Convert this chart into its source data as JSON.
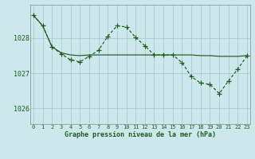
{
  "title": "Graphe pression niveau de la mer (hPa)",
  "bg_color": "#cce8ec",
  "grid_color": "#aaccd4",
  "line_color": "#1e5c1e",
  "x_ticks": [
    0,
    1,
    2,
    3,
    4,
    5,
    6,
    7,
    8,
    9,
    10,
    11,
    12,
    13,
    14,
    15,
    16,
    17,
    18,
    19,
    20,
    21,
    22,
    23
  ],
  "y_ticks": [
    1026,
    1027,
    1028
  ],
  "ylim": [
    1025.55,
    1028.95
  ],
  "xlim": [
    -0.3,
    23.3
  ],
  "series1_y": [
    1028.65,
    1028.35,
    1027.75,
    1027.58,
    1027.52,
    1027.5,
    1027.52,
    1027.52,
    1027.52,
    1027.52,
    1027.52,
    1027.52,
    1027.52,
    1027.52,
    1027.52,
    1027.52,
    1027.52,
    1027.52,
    1027.5,
    1027.5,
    1027.48,
    1027.48,
    1027.48,
    1027.5
  ],
  "series2_y": [
    1028.65,
    1028.35,
    1027.75,
    1027.55,
    1027.38,
    1027.32,
    1027.48,
    1027.65,
    1028.05,
    1028.35,
    1028.32,
    1028.02,
    1027.78,
    1027.52,
    1027.52,
    1027.52,
    1027.3,
    1026.9,
    1026.72,
    1026.68,
    1026.42,
    1026.78,
    1027.12,
    1027.5
  ]
}
